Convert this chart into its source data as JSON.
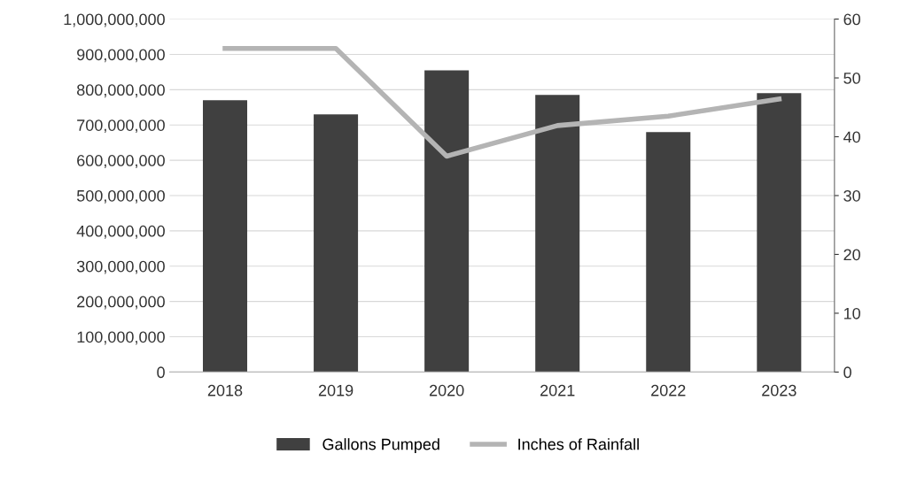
{
  "chart_data": {
    "type": "bar",
    "categories": [
      "2018",
      "2019",
      "2020",
      "2021",
      "2022",
      "2023"
    ],
    "series": [
      {
        "name": "Gallons Pumped",
        "color": "#404040",
        "values": [
          770000000,
          730000000,
          855000000,
          785000000,
          680000000,
          790000000
        ]
      },
      {
        "name": "Inches of Rainfall",
        "type": "line",
        "axis": "y2",
        "color": "#b4b4b4",
        "values": [
          55,
          55,
          36.7,
          41.9,
          43.5,
          46.4
        ]
      }
    ],
    "ylim": [
      0,
      1000000000
    ],
    "yticks": [
      {
        "value": 0,
        "label": "0"
      },
      {
        "value": 100000000,
        "label": "100,000,000"
      },
      {
        "value": 200000000,
        "label": "200,000,000"
      },
      {
        "value": 300000000,
        "label": "300,000,000"
      },
      {
        "value": 400000000,
        "label": "400,000,000"
      },
      {
        "value": 500000000,
        "label": "500,000,000"
      },
      {
        "value": 600000000,
        "label": "600,000,000"
      },
      {
        "value": 700000000,
        "label": "700,000,000"
      },
      {
        "value": 800000000,
        "label": "800,000,000"
      },
      {
        "value": 900000000,
        "label": "900,000,000"
      },
      {
        "value": 1000000000,
        "label": "1,000,000,000"
      }
    ],
    "y2lim": [
      0,
      60
    ],
    "y2ticks": [
      0,
      10,
      20,
      30,
      40,
      50,
      60
    ],
    "grid": "y",
    "legend": "bottom",
    "marker": "none",
    "line_style": "solid"
  }
}
